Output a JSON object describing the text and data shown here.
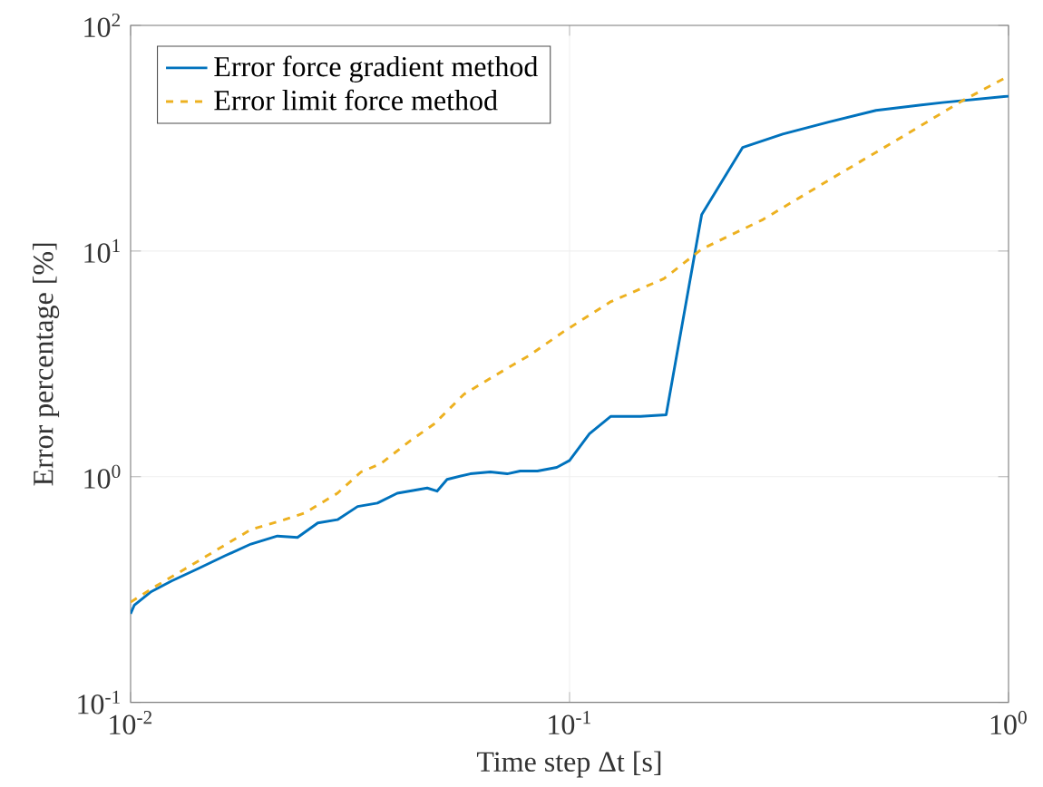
{
  "chart_data": {
    "type": "line",
    "xlabel": "Time step Δt [s]",
    "ylabel": "Error percentage [%]",
    "log": "xy",
    "grid": true,
    "legend": "top left",
    "xlim": [
      0.01,
      1
    ],
    "ylim": [
      0.1,
      100
    ],
    "xticks": [
      {
        "value": 0.01,
        "label": "10$^{-2}$"
      },
      {
        "value": 0.1,
        "label": "10$^{-1}$"
      },
      {
        "value": 1,
        "label": "10$^{0}$"
      }
    ],
    "yticks": [
      {
        "value": 0.1,
        "label": "10$^{-1}$"
      },
      {
        "value": 1,
        "label": "10$^{0}$"
      },
      {
        "value": 10,
        "label": "10$^{1}$"
      },
      {
        "value": 100,
        "label": "10$^{2}$"
      }
    ],
    "series": [
      {
        "name": "Error force gradient method",
        "color": "#0072bd",
        "line_style": "solid",
        "x": [
          0.01,
          0.0102,
          0.0111,
          0.0124,
          0.0142,
          0.0164,
          0.0188,
          0.0216,
          0.024,
          0.0267,
          0.0296,
          0.0329,
          0.0365,
          0.0405,
          0.0474,
          0.0499,
          0.0526,
          0.0594,
          0.066,
          0.0721,
          0.0772,
          0.0845,
          0.0935,
          0.1,
          0.111,
          0.124,
          0.145,
          0.166,
          0.2,
          0.248,
          0.306,
          0.391,
          0.499,
          0.707,
          1
        ],
        "values": [
          0.247,
          0.27,
          0.308,
          0.345,
          0.39,
          0.446,
          0.503,
          0.546,
          0.538,
          0.624,
          0.645,
          0.738,
          0.764,
          0.845,
          0.891,
          0.863,
          0.973,
          1.03,
          1.05,
          1.03,
          1.06,
          1.06,
          1.1,
          1.18,
          1.55,
          1.85,
          1.85,
          1.88,
          14.5,
          28.8,
          33,
          37.4,
          42,
          45.5,
          48.6
        ]
      },
      {
        "name": "Error limit force method",
        "color": "#edb120",
        "line_style": "dashed",
        "x": [
          0.01,
          0.0115,
          0.0133,
          0.0158,
          0.0188,
          0.0224,
          0.0249,
          0.0296,
          0.0335,
          0.0371,
          0.0435,
          0.0491,
          0.0575,
          0.0683,
          0.0814,
          0.097,
          0.124,
          0.164,
          0.2,
          0.276,
          0.391,
          0.556,
          0.786,
          1
        ],
        "values": [
          0.278,
          0.33,
          0.39,
          0.477,
          0.583,
          0.645,
          0.69,
          0.845,
          1.05,
          1.14,
          1.45,
          1.71,
          2.32,
          2.84,
          3.47,
          4.4,
          5.96,
          7.54,
          10.2,
          13.8,
          20.7,
          31,
          46.4,
          59.6
        ]
      }
    ]
  }
}
